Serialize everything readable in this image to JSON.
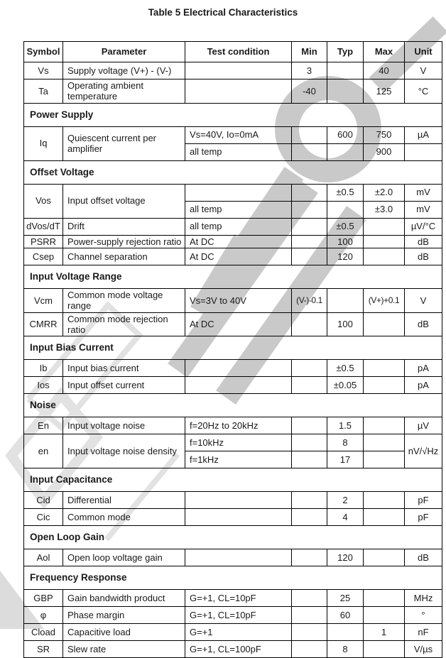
{
  "title": "Table 5 Electrical Characteristics",
  "watermark": {
    "fill_color": "#c9c9c9",
    "outline_color": "#e2e2e2"
  },
  "table": {
    "columns": [
      "Symbol",
      "Parameter",
      "Test condition",
      "Min",
      "Typ",
      "Max",
      "Unit"
    ],
    "rows": [
      {
        "kind": "data",
        "single": true,
        "cells": [
          {
            "t": "Vs"
          },
          {
            "t": "Supply voltage (V+) - (V-)"
          },
          {
            "t": ""
          },
          {
            "t": "3"
          },
          {
            "t": ""
          },
          {
            "t": "40"
          },
          {
            "t": "V"
          }
        ]
      },
      {
        "kind": "data",
        "cells": [
          {
            "t": "Ta"
          },
          {
            "t": "Operating ambient temperature"
          },
          {
            "t": ""
          },
          {
            "t": "-40"
          },
          {
            "t": ""
          },
          {
            "t": "125"
          },
          {
            "t": "°C"
          }
        ]
      },
      {
        "kind": "section",
        "label": "Power Supply"
      },
      {
        "kind": "data",
        "single": true,
        "cells": [
          {
            "t": "Iq",
            "rs": 2
          },
          {
            "t": "Quiescent current per amplifier",
            "rs": 2
          },
          {
            "t": "Vs=40V, Io=0mA"
          },
          {
            "t": ""
          },
          {
            "t": "600"
          },
          {
            "t": "750"
          },
          {
            "t": "µA"
          }
        ]
      },
      {
        "kind": "data",
        "single": true,
        "cells": [
          {
            "t": "all temp"
          },
          {
            "t": ""
          },
          {
            "t": ""
          },
          {
            "t": "900"
          },
          {
            "t": ""
          }
        ]
      },
      {
        "kind": "section",
        "label": "Offset Voltage"
      },
      {
        "kind": "data",
        "single": true,
        "cells": [
          {
            "t": "Vos",
            "rs": 2
          },
          {
            "t": "Input offset voltage",
            "rs": 2
          },
          {
            "t": ""
          },
          {
            "t": ""
          },
          {
            "t": "±0.5"
          },
          {
            "t": "±2.0"
          },
          {
            "t": "mV"
          }
        ]
      },
      {
        "kind": "data",
        "single": true,
        "cells": [
          {
            "t": "all temp"
          },
          {
            "t": ""
          },
          {
            "t": ""
          },
          {
            "t": "±3.0"
          },
          {
            "t": "mV"
          }
        ]
      },
      {
        "kind": "data",
        "single": true,
        "cells": [
          {
            "t": "dVos/dT"
          },
          {
            "t": "Drift"
          },
          {
            "t": "all temp"
          },
          {
            "t": ""
          },
          {
            "t": "±0.5"
          },
          {
            "t": ""
          },
          {
            "t": "µV/°C"
          }
        ]
      },
      {
        "kind": "data",
        "cells": [
          {
            "t": "PSRR"
          },
          {
            "t": "Power-supply rejection ratio"
          },
          {
            "t": "At DC"
          },
          {
            "t": ""
          },
          {
            "t": "100"
          },
          {
            "t": ""
          },
          {
            "t": "dB"
          }
        ]
      },
      {
        "kind": "data",
        "single": true,
        "cells": [
          {
            "t": "Csep"
          },
          {
            "t": "Channel separation"
          },
          {
            "t": "At DC"
          },
          {
            "t": ""
          },
          {
            "t": "120"
          },
          {
            "t": ""
          },
          {
            "t": "dB"
          }
        ]
      },
      {
        "kind": "section",
        "label": "Input Voltage Range"
      },
      {
        "kind": "data",
        "cells": [
          {
            "t": "Vcm"
          },
          {
            "t": "Common mode voltage range"
          },
          {
            "t": "Vs=3V to 40V"
          },
          {
            "t": "(V-)-0.1"
          },
          {
            "t": ""
          },
          {
            "t": "(V+)+0.1"
          },
          {
            "t": "V"
          }
        ]
      },
      {
        "kind": "data",
        "cells": [
          {
            "t": "CMRR"
          },
          {
            "t": "Common mode rejection ratio"
          },
          {
            "t": "At DC"
          },
          {
            "t": ""
          },
          {
            "t": "100"
          },
          {
            "t": ""
          },
          {
            "t": "dB"
          }
        ]
      },
      {
        "kind": "section",
        "label": "Input Bias Current"
      },
      {
        "kind": "data",
        "single": true,
        "cells": [
          {
            "t": "Ib"
          },
          {
            "t": "Input bias current"
          },
          {
            "t": ""
          },
          {
            "t": ""
          },
          {
            "t": "±0.5"
          },
          {
            "t": ""
          },
          {
            "t": "pA"
          }
        ]
      },
      {
        "kind": "data",
        "single": true,
        "cells": [
          {
            "t": "Ios"
          },
          {
            "t": "Input offset current"
          },
          {
            "t": ""
          },
          {
            "t": ""
          },
          {
            "t": "±0.05"
          },
          {
            "t": ""
          },
          {
            "t": "pA"
          }
        ]
      },
      {
        "kind": "section",
        "label": "Noise"
      },
      {
        "kind": "data",
        "single": true,
        "cells": [
          {
            "t": "En"
          },
          {
            "t": "Input voltage noise"
          },
          {
            "t": "f=20Hz to 20kHz"
          },
          {
            "t": ""
          },
          {
            "t": "1.5"
          },
          {
            "t": ""
          },
          {
            "t": "µV"
          }
        ]
      },
      {
        "kind": "data",
        "single": true,
        "cells": [
          {
            "t": "en",
            "rs": 2
          },
          {
            "t": "Input voltage noise density",
            "rs": 2
          },
          {
            "t": "f=10kHz"
          },
          {
            "t": ""
          },
          {
            "t": "8"
          },
          {
            "t": ""
          },
          {
            "t": "nV/√Hz",
            "rs": 2
          }
        ]
      },
      {
        "kind": "data",
        "single": true,
        "cells": [
          {
            "t": "f=1kHz"
          },
          {
            "t": ""
          },
          {
            "t": "17"
          },
          {
            "t": ""
          }
        ]
      },
      {
        "kind": "section",
        "label": "Input Capacitance"
      },
      {
        "kind": "data",
        "single": true,
        "cells": [
          {
            "t": "Cid"
          },
          {
            "t": "Differential"
          },
          {
            "t": ""
          },
          {
            "t": ""
          },
          {
            "t": "2"
          },
          {
            "t": ""
          },
          {
            "t": "pF"
          }
        ]
      },
      {
        "kind": "data",
        "single": true,
        "cells": [
          {
            "t": "Cic"
          },
          {
            "t": "Common mode"
          },
          {
            "t": ""
          },
          {
            "t": ""
          },
          {
            "t": "4"
          },
          {
            "t": ""
          },
          {
            "t": "pF"
          }
        ]
      },
      {
        "kind": "section",
        "label": "Open Loop Gain"
      },
      {
        "kind": "data",
        "single": true,
        "cells": [
          {
            "t": "Aol"
          },
          {
            "t": "Open loop voltage gain"
          },
          {
            "t": ""
          },
          {
            "t": ""
          },
          {
            "t": "120"
          },
          {
            "t": ""
          },
          {
            "t": "dB"
          }
        ]
      },
      {
        "kind": "section",
        "label": "Frequency Response"
      },
      {
        "kind": "data",
        "single": true,
        "cells": [
          {
            "t": "GBP"
          },
          {
            "t": "Gain bandwidth product"
          },
          {
            "t": "G=+1, CL=10pF"
          },
          {
            "t": ""
          },
          {
            "t": "25"
          },
          {
            "t": ""
          },
          {
            "t": "MHz"
          }
        ]
      },
      {
        "kind": "data",
        "single": true,
        "cells": [
          {
            "t": "φ"
          },
          {
            "t": "Phase margin"
          },
          {
            "t": "G=+1, CL=10pF"
          },
          {
            "t": ""
          },
          {
            "t": "60"
          },
          {
            "t": ""
          },
          {
            "t": "°"
          }
        ]
      },
      {
        "kind": "data",
        "single": true,
        "cells": [
          {
            "t": "Cload"
          },
          {
            "t": "Capacitive load"
          },
          {
            "t": "G=+1"
          },
          {
            "t": ""
          },
          {
            "t": ""
          },
          {
            "t": "1"
          },
          {
            "t": "nF"
          }
        ]
      },
      {
        "kind": "data",
        "single": true,
        "cells": [
          {
            "t": "SR"
          },
          {
            "t": "Slew rate"
          },
          {
            "t": "G=+1, CL=100pF"
          },
          {
            "t": ""
          },
          {
            "t": "8"
          },
          {
            "t": ""
          },
          {
            "t": "V/µs"
          }
        ]
      }
    ]
  }
}
